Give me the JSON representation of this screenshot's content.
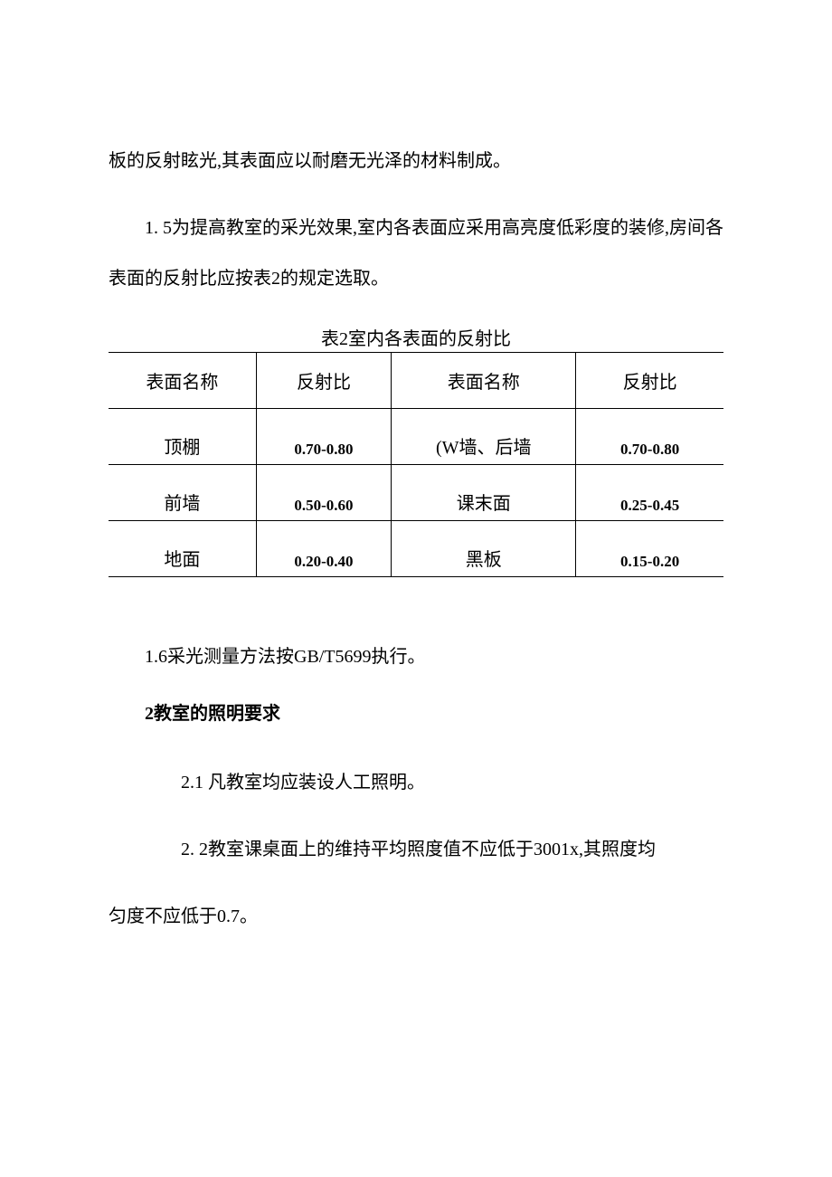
{
  "paragraphs": {
    "p0": "板的反射眩光,其表面应以耐磨无光泽的材料制成。",
    "p1": "1. 5为提高教室的采光效果,室内各表面应采用高亮度低彩度的装修,房间各表面的反射比应按表2的规定选取。",
    "p2": "1.6采光测量方法按GB/T5699执行。",
    "p4_pre": "2.1",
    "p4_body": "凡教室均应装设人工照明。",
    "p5_pre": "2.",
    "p5_body": "2教室课桌面上的维持平均照度值不应低于3001x,其照度均",
    "p5_cont": "匀度不应低于0.7。"
  },
  "section_heading": "2教室的照明要求",
  "table": {
    "caption": "表2室内各表面的反射比",
    "columns": [
      "表面名称",
      "反射比",
      "表面名称",
      "反射比"
    ],
    "rows": [
      [
        "顶棚",
        "0.70-0.80",
        "(W墙、后墙",
        "0.70-0.80"
      ],
      [
        "前墙",
        "0.50-0.60",
        "课末面",
        "0.25-0.45"
      ],
      [
        "地面",
        "0.20-0.40",
        "黑板",
        "0.15-0.20"
      ]
    ],
    "border_color": "#000000",
    "background_color": "#ffffff",
    "header_fontsize": 20,
    "name_fontsize": 20,
    "value_fontsize": 17,
    "value_fontweight": "bold",
    "col_widths_pct": [
      24,
      22,
      30,
      24
    ]
  },
  "colors": {
    "text": "#000000",
    "background": "#ffffff"
  },
  "typography": {
    "body_fontsize": 20,
    "line_height": 2.8,
    "font_family": "SimSun"
  }
}
